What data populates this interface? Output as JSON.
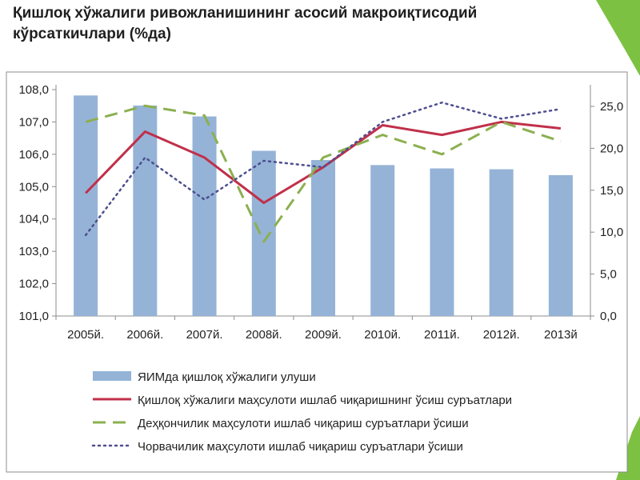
{
  "page": {
    "title": "Қишлоқ хўжалиги ривожланишининг асосий макроиқтисодий кўрсаткичлари (%да)"
  },
  "colors": {
    "accent_green": "#7dc142",
    "bar": "#95b3d7",
    "series_red": "#c0304a",
    "series_green_dash": "#8bb050",
    "series_blue_dot": "#4d4f8f",
    "frame": "#8c8c8c"
  },
  "chart_data": {
    "type": "bar",
    "categories": [
      "2005й.",
      "2006й.",
      "2007й.",
      "2008й.",
      "2009й.",
      "2010й.",
      "2011й.",
      "2012й.",
      "2013й"
    ],
    "ylim_left": [
      101.0,
      108.0
    ],
    "ylim_right": [
      0.0,
      27.0
    ],
    "left_ticks": [
      "101,0",
      "102,0",
      "103,0",
      "104,0",
      "105,0",
      "106,0",
      "107,0",
      "108,0"
    ],
    "right_ticks": [
      "0,0",
      "5,0",
      "10,0",
      "15,0",
      "20,0",
      "25,0"
    ],
    "grid": false,
    "legend_position": "bottom",
    "series": [
      {
        "name": "ЯИМда қишлоқ хўжалиги улуши",
        "type": "bar",
        "axis": "right",
        "color": "#95b3d7",
        "values": [
          26.3,
          25.1,
          23.8,
          19.7,
          18.6,
          18.0,
          17.6,
          17.5,
          16.8
        ]
      },
      {
        "name": "Қишлоқ хўжалиги маҳсулоти ишлаб чиқаришнинг ўсиш суръатлари",
        "type": "line",
        "style": "solid",
        "axis": "left",
        "color": "#c0304a",
        "values": [
          104.8,
          106.7,
          105.9,
          104.5,
          105.6,
          106.9,
          106.6,
          107.0,
          106.8
        ]
      },
      {
        "name": "Деҳқончилик маҳсулоти ишлаб чиқариш суръатлари ўсиши",
        "type": "line",
        "style": "dashed",
        "axis": "left",
        "color": "#8bb050",
        "values": [
          107.0,
          107.5,
          107.2,
          103.3,
          105.9,
          106.6,
          106.0,
          107.0,
          106.4
        ]
      },
      {
        "name": "Чорвачилик маҳсулоти ишлаб чиқариш суръатлари ўсиши",
        "type": "line",
        "style": "dotted",
        "axis": "left",
        "color": "#4d4f8f",
        "values": [
          103.5,
          105.9,
          104.6,
          105.8,
          105.6,
          107.0,
          107.6,
          107.1,
          107.4
        ]
      }
    ]
  }
}
